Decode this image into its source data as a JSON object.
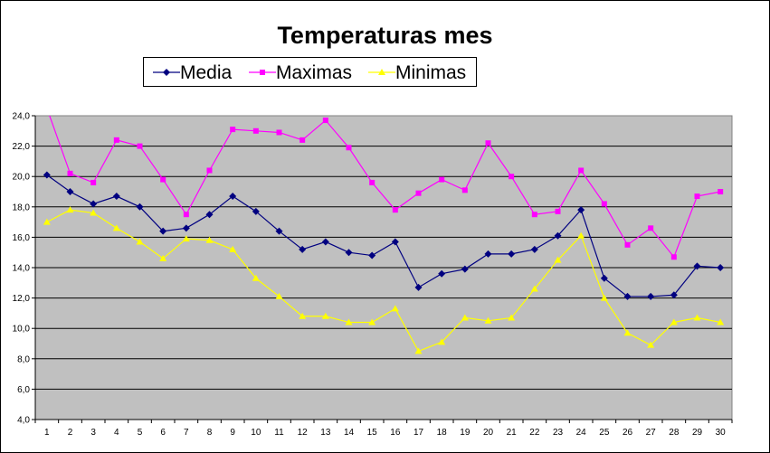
{
  "chart_data": {
    "type": "line",
    "title": "Temperaturas mes",
    "xlabel": "",
    "ylabel": "",
    "categories": [
      "1",
      "2",
      "3",
      "4",
      "5",
      "6",
      "7",
      "8",
      "9",
      "10",
      "11",
      "12",
      "13",
      "14",
      "15",
      "16",
      "17",
      "18",
      "19",
      "20",
      "21",
      "22",
      "23",
      "24",
      "25",
      "26",
      "27",
      "28",
      "29",
      "30"
    ],
    "ylim": [
      4,
      24
    ],
    "yticks": [
      "4,0",
      "6,0",
      "8,0",
      "10,0",
      "12,0",
      "14,0",
      "16,0",
      "18,0",
      "20,0",
      "22,0",
      "24,0"
    ],
    "grid": true,
    "plot_background": "#C0C0C0",
    "legend_position": "top",
    "series": [
      {
        "name": "Media",
        "color": "#000080",
        "marker": "diamond",
        "values": [
          20.1,
          19.0,
          18.2,
          18.7,
          18.0,
          16.4,
          16.6,
          17.5,
          18.7,
          17.7,
          16.4,
          15.2,
          15.7,
          15.0,
          14.8,
          15.7,
          12.7,
          13.6,
          13.9,
          14.9,
          14.9,
          15.2,
          16.1,
          17.8,
          13.3,
          12.1,
          12.1,
          12.2,
          14.1,
          14.0
        ]
      },
      {
        "name": "Maximas",
        "color": "#FF00FF",
        "marker": "square",
        "values": [
          24.5,
          20.2,
          19.6,
          22.4,
          22.0,
          19.8,
          17.5,
          20.4,
          23.1,
          23.0,
          22.9,
          22.4,
          23.7,
          21.9,
          19.6,
          17.8,
          18.9,
          19.8,
          19.1,
          22.2,
          20.0,
          17.5,
          17.7,
          20.4,
          18.2,
          15.5,
          16.6,
          14.7,
          18.7,
          19.0
        ]
      },
      {
        "name": "Minimas",
        "color": "#FFFF00",
        "marker": "triangle",
        "values": [
          17.0,
          17.8,
          17.6,
          16.6,
          15.7,
          14.6,
          15.9,
          15.8,
          15.2,
          13.3,
          12.1,
          10.8,
          10.8,
          10.4,
          10.4,
          11.3,
          8.5,
          9.1,
          10.7,
          10.5,
          10.7,
          12.6,
          14.5,
          16.1,
          12.0,
          9.7,
          8.9,
          10.4,
          10.7,
          10.4
        ]
      }
    ]
  }
}
